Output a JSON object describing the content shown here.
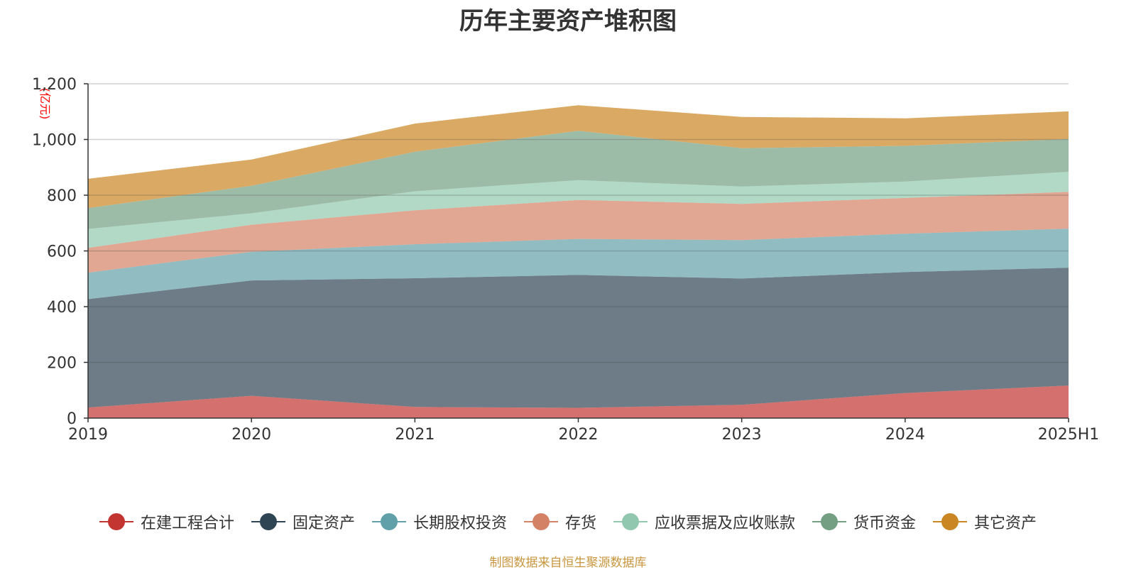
{
  "chart_data": {
    "type": "area",
    "stacked": true,
    "title": "历年主要资产堆积图",
    "ylabel": "(亿元)",
    "xlabel": "",
    "categories": [
      "2019",
      "2020",
      "2021",
      "2022",
      "2023",
      "2024",
      "2025H1"
    ],
    "ylim": [
      0,
      1200
    ],
    "yticks": [
      0,
      200,
      400,
      600,
      800,
      1000,
      1200
    ],
    "ytick_labels": [
      "0",
      "200",
      "400",
      "600",
      "800",
      "1,000",
      "1,200"
    ],
    "grid": true,
    "legend_position": "bottom",
    "series": [
      {
        "name": "在建工程合计",
        "color": "#c23531",
        "values": [
          38,
          80,
          40,
          37,
          48,
          90,
          117
        ]
      },
      {
        "name": "固定资产",
        "color": "#2f4554",
        "values": [
          389,
          414,
          462,
          477,
          453,
          434,
          423
        ]
      },
      {
        "name": "长期股权投资",
        "color": "#61a0a8",
        "values": [
          95,
          103,
          122,
          129,
          138,
          138,
          140
        ]
      },
      {
        "name": "存货",
        "color": "#d48265",
        "values": [
          89,
          97,
          122,
          140,
          130,
          128,
          132
        ]
      },
      {
        "name": "应收票据及应收账款",
        "color": "#91c7ae",
        "values": [
          68,
          41,
          68,
          71,
          62,
          59,
          72
        ]
      },
      {
        "name": "货币资金",
        "color": "#749f83",
        "values": [
          75,
          99,
          142,
          177,
          138,
          128,
          118
        ]
      },
      {
        "name": "其它资产",
        "color": "#ca8622",
        "values": [
          105,
          94,
          101,
          92,
          112,
          99,
          99
        ]
      }
    ],
    "source_note": "制图数据来自恒生聚源数据库"
  }
}
